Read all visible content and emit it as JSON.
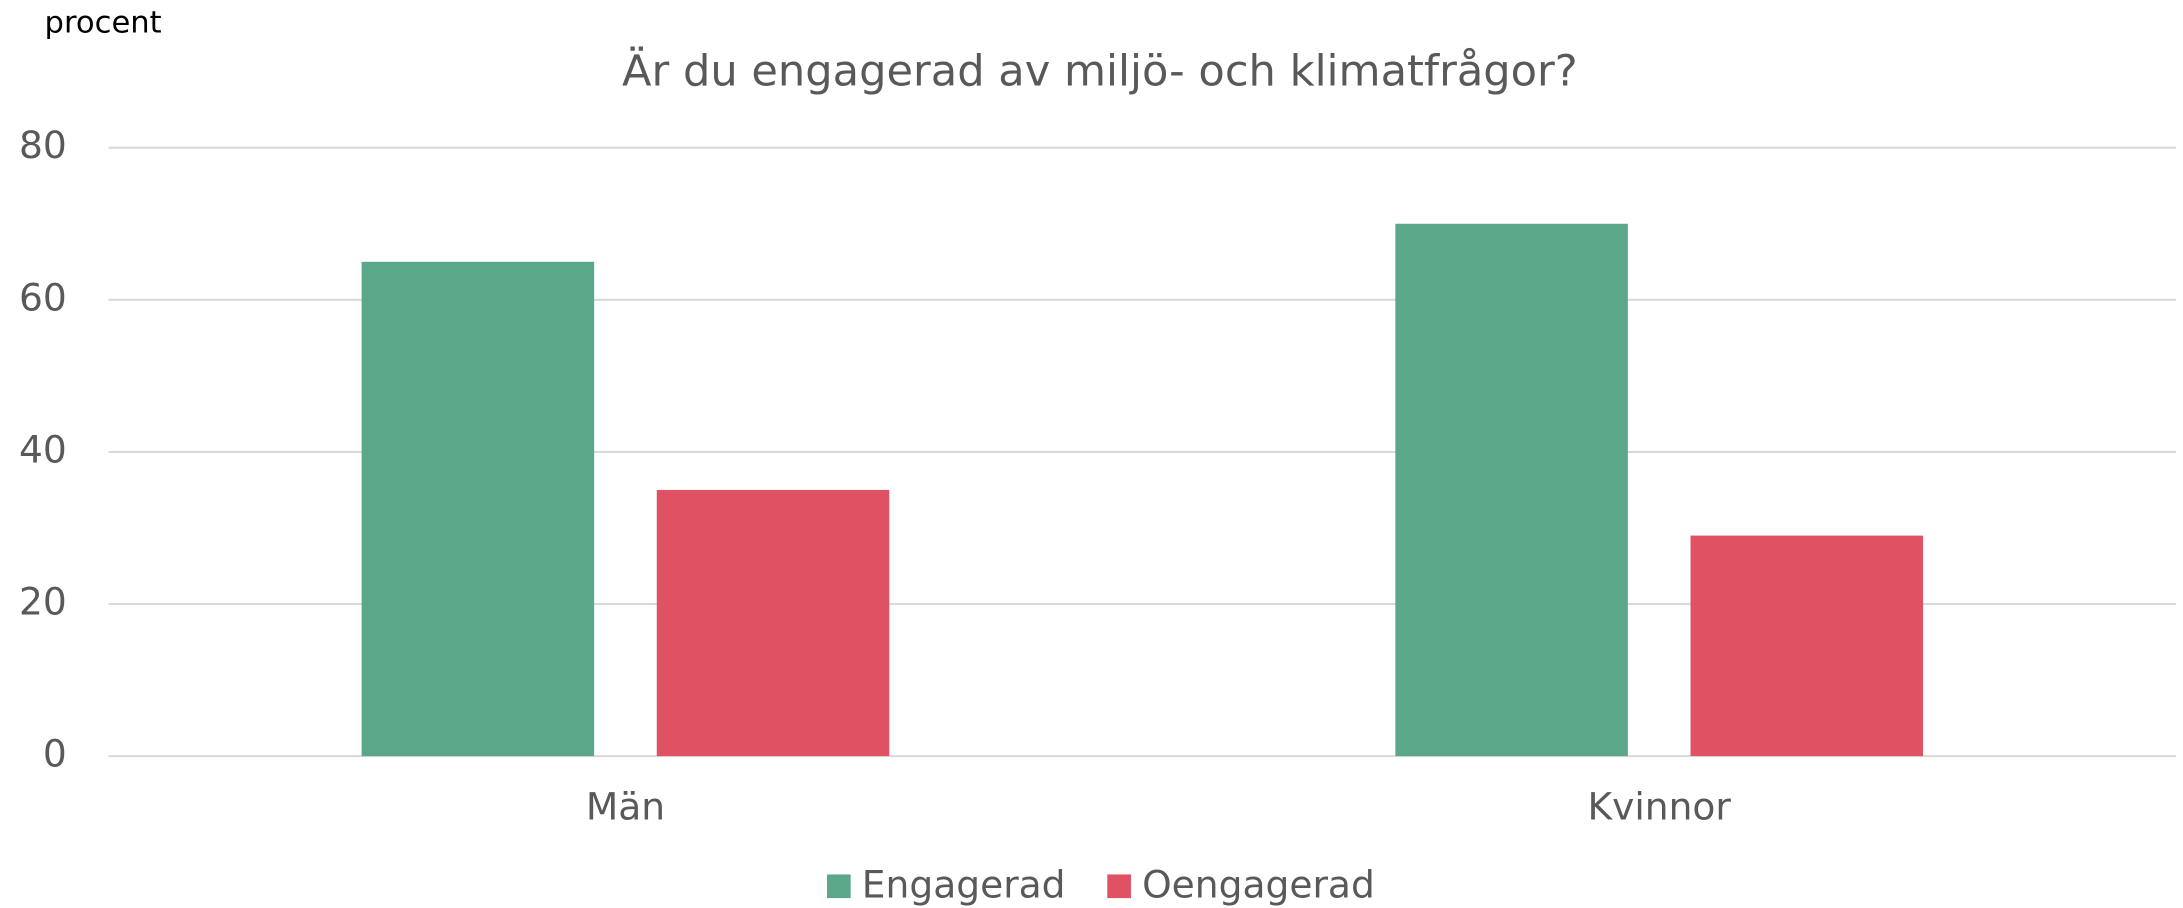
{
  "chart_data": {
    "type": "bar",
    "title": "Är du engagerad av miljö- och klimatfrågor?",
    "ylabel": "procent",
    "categories": [
      "Män",
      "Kvinnor"
    ],
    "series": [
      {
        "name": "Engagerad",
        "color": "#5aa78a",
        "values": [
          65,
          70
        ]
      },
      {
        "name": "Oengagerad",
        "color": "#e05263",
        "values": [
          35,
          29
        ]
      }
    ],
    "ylim": [
      0,
      80
    ],
    "yticks": [
      0,
      20,
      40,
      60,
      80
    ],
    "grid": true,
    "legend": "bottom"
  }
}
